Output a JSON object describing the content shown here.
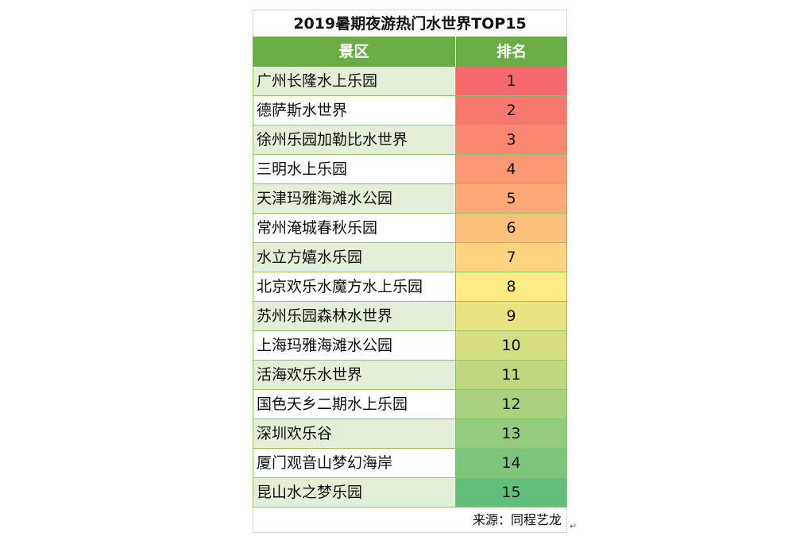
{
  "title": "2019暑期夜游热门水世界TOP15",
  "header": {
    "name_col": "景区",
    "rank_col": "排名"
  },
  "rows": [
    {
      "name": "广州长隆水上乐园",
      "rank": "1",
      "color": "#f8696b"
    },
    {
      "name": "德萨斯水世界",
      "rank": "2",
      "color": "#f9786e"
    },
    {
      "name": "徐州乐园加勒比水世界",
      "rank": "3",
      "color": "#f98871"
    },
    {
      "name": "三明水上乐园",
      "rank": "4",
      "color": "#fa9873"
    },
    {
      "name": "天津玛雅海滩水公园",
      "rank": "5",
      "color": "#fca877"
    },
    {
      "name": "常州淹城春秋乐园",
      "rank": "6",
      "color": "#fdc07c"
    },
    {
      "name": "水立方嬉水乐园",
      "rank": "7",
      "color": "#fed47f"
    },
    {
      "name": "北京欢乐水魔方水上乐园",
      "rank": "8",
      "color": "#ffeb84"
    },
    {
      "name": "苏州乐园森林水世界",
      "rank": "9",
      "color": "#e9e482"
    },
    {
      "name": "上海玛雅海滩水公园",
      "rank": "10",
      "color": "#d4de81"
    },
    {
      "name": "活海欢乐水世界",
      "rank": "11",
      "color": "#bfd87f"
    },
    {
      "name": "国色天乡二期水上乐园",
      "rank": "12",
      "color": "#a9d27e"
    },
    {
      "name": "深圳欢乐谷",
      "rank": "13",
      "color": "#93cb7d"
    },
    {
      "name": "厦门观音山梦幻海岸",
      "rank": "14",
      "color": "#7ec57c"
    },
    {
      "name": "昆山水之梦乐园",
      "rank": "15",
      "color": "#63be7b"
    }
  ],
  "source": "来源：同程艺龙",
  "paragraph_mark": "↵"
}
